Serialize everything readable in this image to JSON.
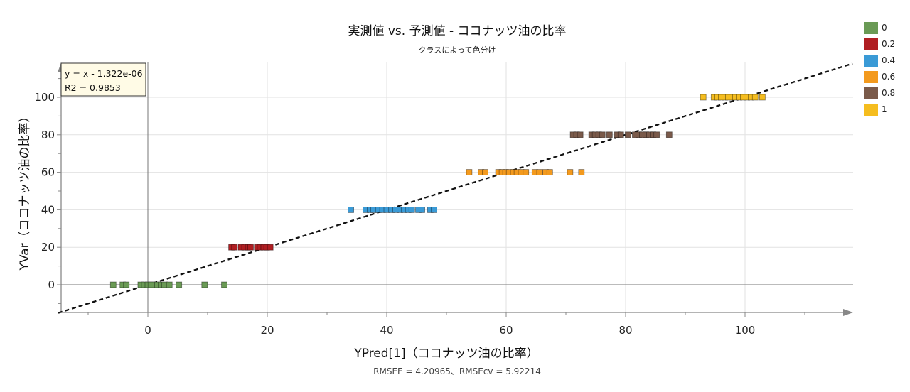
{
  "chart_data": {
    "type": "scatter",
    "title": "実測値 vs. 予測値 - ココナッツ油の比率",
    "subtitle": "クラスによって色分け",
    "xlabel": "YPred[1]（ココナッツ油の比率）",
    "ylabel": "YVar（ココナッツ油の比率）",
    "xlim": [
      -15,
      118
    ],
    "ylim": [
      -15,
      118
    ],
    "x_ticks": [
      0,
      20,
      40,
      60,
      80,
      100
    ],
    "y_ticks": [
      0,
      20,
      40,
      60,
      80,
      100
    ],
    "grid": true,
    "regression": {
      "equation": "y = x - 1.322e-06",
      "r2": "R2 = 0.9853",
      "slope": 1,
      "intercept": -1.322e-06
    },
    "footer": "RMSEE = 4.20965、RMSEcv = 5.92214",
    "legend_position": "top-right",
    "series": [
      {
        "name": "0",
        "color": "#6a9a55",
        "y": 0,
        "x": [
          -5.8,
          -4.2,
          -3.6,
          -1.2,
          -0.6,
          0.0,
          0.5,
          1.0,
          1.6,
          2.2,
          2.8,
          3.6,
          5.2,
          9.5,
          12.8
        ]
      },
      {
        "name": "0.2",
        "color": "#b01e22",
        "y": 20,
        "x": [
          14.0,
          14.5,
          15.6,
          16.2,
          16.8,
          17.2,
          18.3,
          18.8,
          19.4,
          19.9,
          20.5
        ]
      },
      {
        "name": "0.4",
        "color": "#3a9ad6",
        "y": 40,
        "x": [
          34.0,
          36.5,
          37.2,
          37.8,
          38.6,
          39.3,
          40.0,
          40.8,
          41.5,
          42.2,
          42.9,
          43.6,
          44.2,
          45.3,
          45.9,
          47.3,
          47.9
        ]
      },
      {
        "name": "0.6",
        "color": "#f39a1e",
        "y": 60,
        "x": [
          53.8,
          55.8,
          56.5,
          58.7,
          59.3,
          59.9,
          60.5,
          61.2,
          61.8,
          62.5,
          63.3,
          64.8,
          65.6,
          66.6,
          67.3,
          70.7,
          72.6
        ]
      },
      {
        "name": "0.8",
        "color": "#7a5a4a",
        "y": 80,
        "x": [
          71.2,
          71.8,
          72.4,
          74.3,
          74.9,
          75.5,
          76.1,
          77.3,
          78.6,
          79.2,
          80.4,
          81.6,
          82.2,
          82.8,
          83.4,
          84.0,
          84.6,
          85.2,
          87.3
        ]
      },
      {
        "name": "1",
        "color": "#f5bd1f",
        "y": 100,
        "x": [
          93.0,
          94.8,
          95.4,
          96.0,
          96.6,
          97.2,
          97.8,
          98.4,
          99.0,
          99.7,
          100.3,
          101.0,
          101.7,
          102.9
        ]
      }
    ]
  }
}
